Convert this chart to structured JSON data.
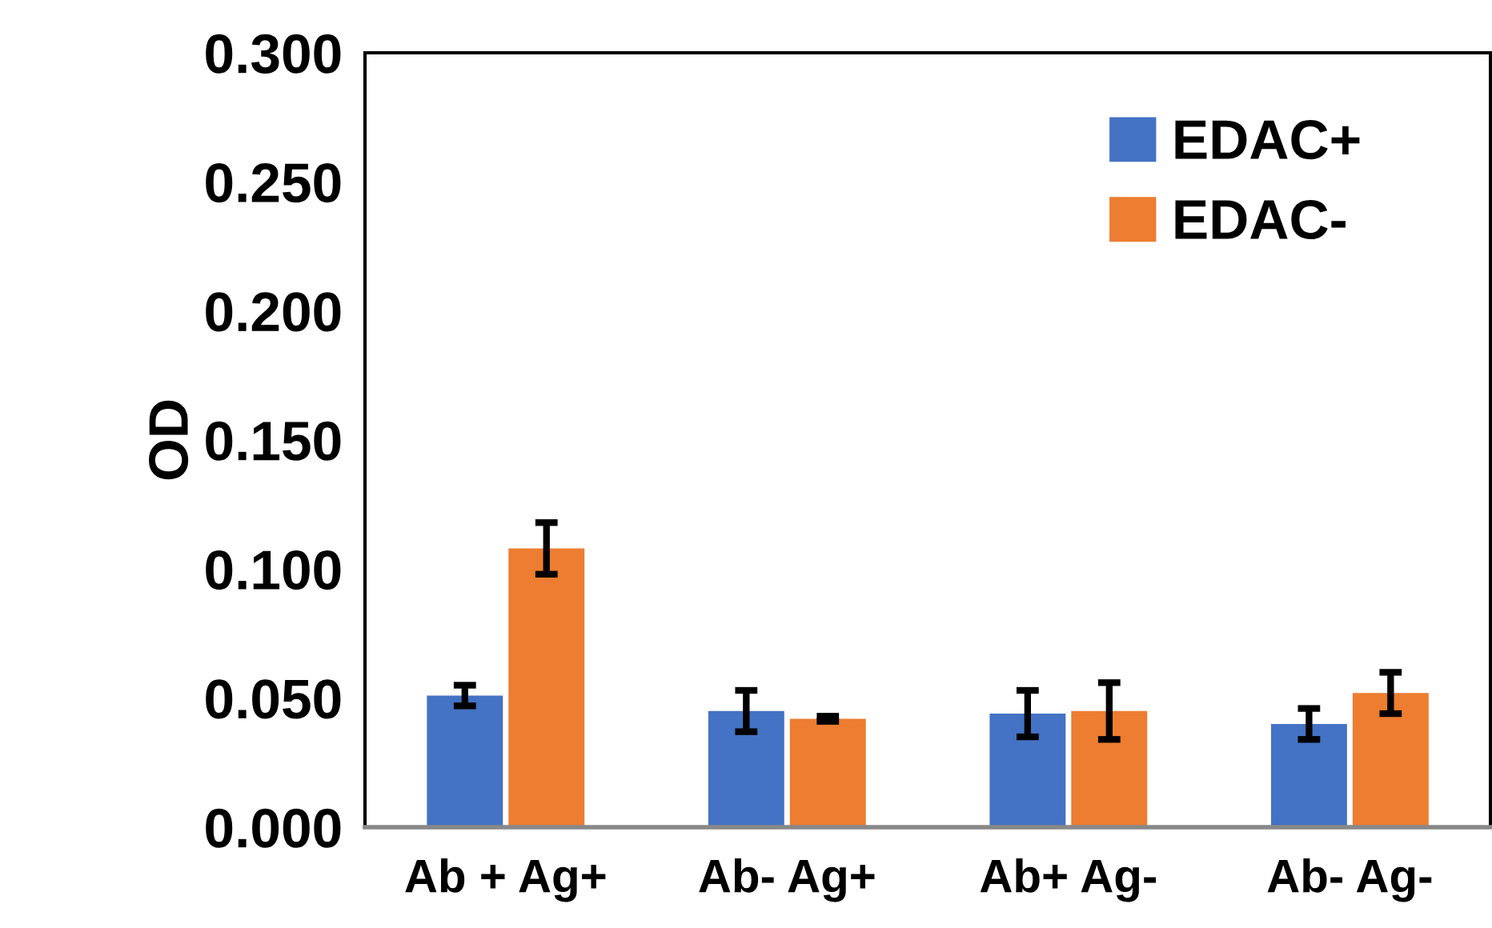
{
  "chart_data": {
    "type": "bar",
    "ylabel": "OD",
    "categories": [
      "Ab + Ag+",
      "Ab- Ag+",
      "Ab+ Ag-",
      "Ab- Ag-"
    ],
    "series": [
      {
        "name": "EDAC+",
        "color": "#4472c4",
        "values": [
          0.051,
          0.045,
          0.044,
          0.04
        ],
        "errors": [
          0.004,
          0.008,
          0.009,
          0.006
        ]
      },
      {
        "name": "EDAC-",
        "color": "#ed7d31",
        "values": [
          0.108,
          0.042,
          0.045,
          0.052
        ],
        "errors": [
          0.01,
          0.001,
          0.011,
          0.008
        ]
      }
    ],
    "ylim": [
      0,
      0.3
    ],
    "yticks": [
      {
        "value": 0,
        "label": "0.000"
      },
      {
        "value": 0.05,
        "label": "0.050"
      },
      {
        "value": 0.1,
        "label": "0.100"
      },
      {
        "value": 0.15,
        "label": "0.150"
      },
      {
        "value": 0.2,
        "label": "0.200"
      },
      {
        "value": 0.25,
        "label": "0.250"
      },
      {
        "value": 0.3,
        "label": "0.300"
      }
    ],
    "grid": false,
    "legend": "top right"
  }
}
